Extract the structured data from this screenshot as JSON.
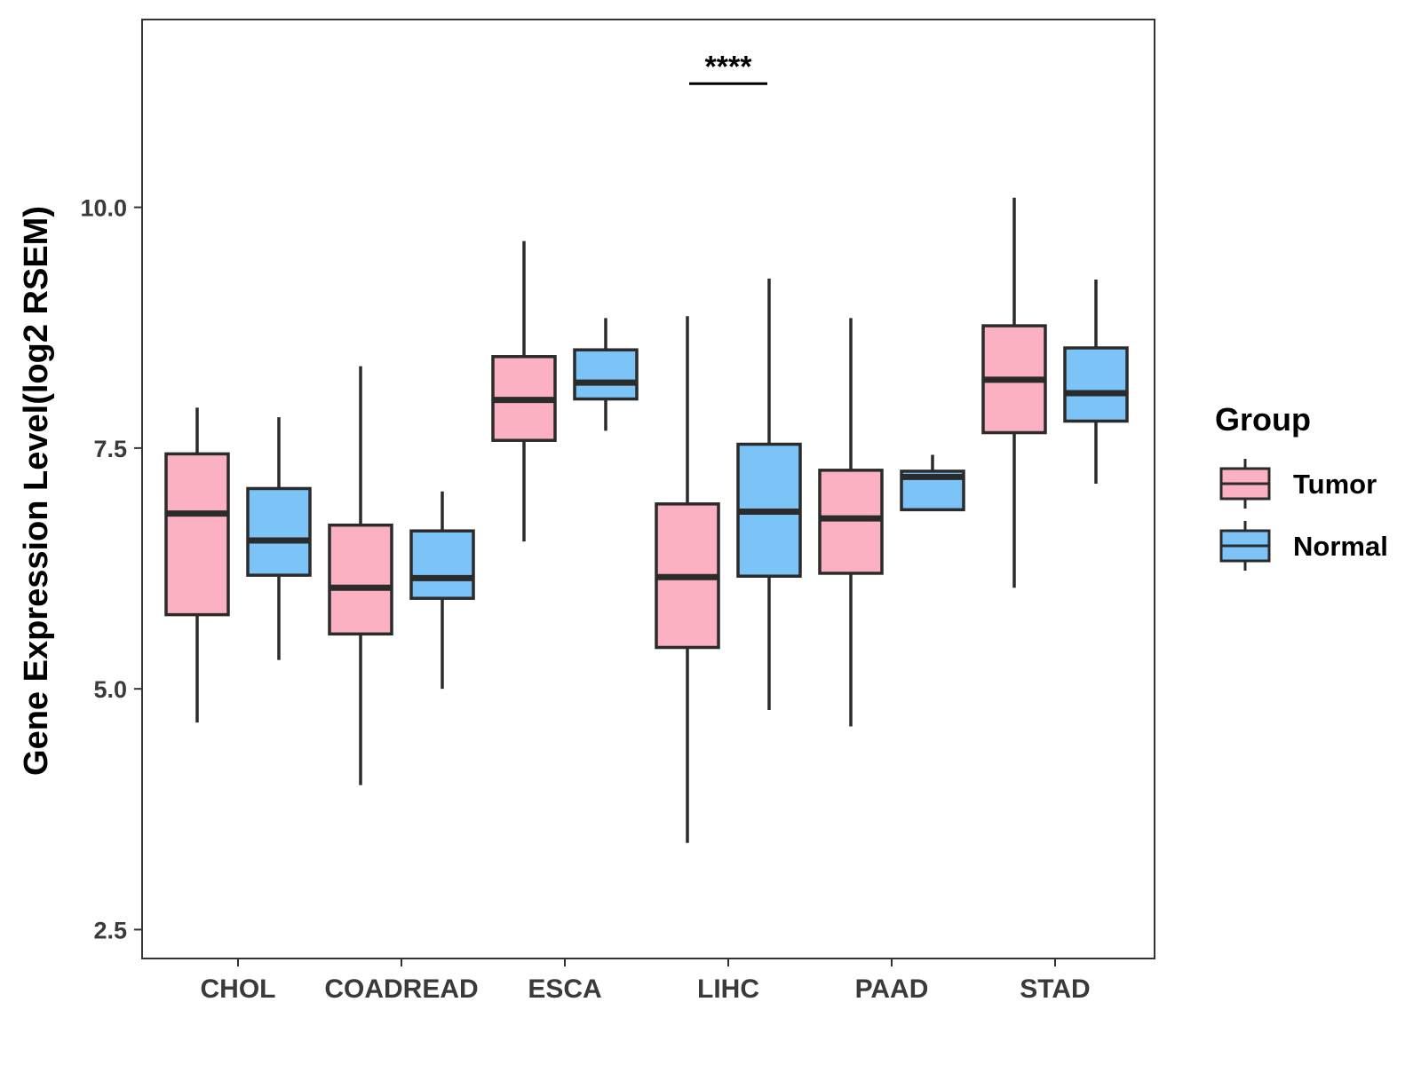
{
  "chart_data": {
    "type": "boxplot",
    "ylabel": "Gene Expression Level(log2 RSEM)",
    "xlabel": "",
    "ylim": [
      2.2,
      11.95
    ],
    "yticks": [
      2.5,
      5.0,
      7.5,
      10.0
    ],
    "ytick_labels": [
      "2.5",
      "5.0",
      "7.5",
      "10.0"
    ],
    "categories": [
      "CHOL",
      "COADREAD",
      "ESCA",
      "LIHC",
      "PAAD",
      "STAD"
    ],
    "series": [
      {
        "name": "Tumor",
        "color": "#FBB1C2",
        "boxes": [
          {
            "category": "CHOL",
            "min": 4.65,
            "q1": 5.77,
            "median": 6.82,
            "q3": 7.44,
            "max": 7.92
          },
          {
            "category": "COADREAD",
            "min": 4.0,
            "q1": 5.57,
            "median": 6.05,
            "q3": 6.7,
            "max": 8.35
          },
          {
            "category": "ESCA",
            "min": 6.53,
            "q1": 7.58,
            "median": 8.0,
            "q3": 8.45,
            "max": 9.65
          },
          {
            "category": "LIHC",
            "min": 3.4,
            "q1": 5.43,
            "median": 6.16,
            "q3": 6.92,
            "max": 8.87
          },
          {
            "category": "PAAD",
            "min": 4.61,
            "q1": 6.2,
            "median": 6.77,
            "q3": 7.27,
            "max": 8.85
          },
          {
            "category": "STAD",
            "min": 6.05,
            "q1": 7.66,
            "median": 8.21,
            "q3": 8.77,
            "max": 10.1
          }
        ]
      },
      {
        "name": "Normal",
        "color": "#7CC3F7",
        "boxes": [
          {
            "category": "CHOL",
            "min": 5.3,
            "q1": 6.18,
            "median": 6.54,
            "q3": 7.08,
            "max": 7.82
          },
          {
            "category": "COADREAD",
            "min": 5.0,
            "q1": 5.94,
            "median": 6.15,
            "q3": 6.64,
            "max": 7.05
          },
          {
            "category": "ESCA",
            "min": 7.68,
            "q1": 8.01,
            "median": 8.18,
            "q3": 8.52,
            "max": 8.85
          },
          {
            "category": "LIHC",
            "min": 4.78,
            "q1": 6.17,
            "median": 6.84,
            "q3": 7.54,
            "max": 9.26
          },
          {
            "category": "PAAD",
            "min": 6.86,
            "q1": 6.86,
            "median": 7.2,
            "q3": 7.26,
            "max": 7.43
          },
          {
            "category": "STAD",
            "min": 7.13,
            "q1": 7.78,
            "median": 8.07,
            "q3": 8.54,
            "max": 9.25
          }
        ]
      }
    ],
    "annotations": [
      {
        "text": "****",
        "category": "LIHC",
        "y": 11.45
      }
    ],
    "legend": {
      "title": "Group",
      "position": "right",
      "entries": [
        "Tumor",
        "Normal"
      ]
    },
    "grid": false
  }
}
